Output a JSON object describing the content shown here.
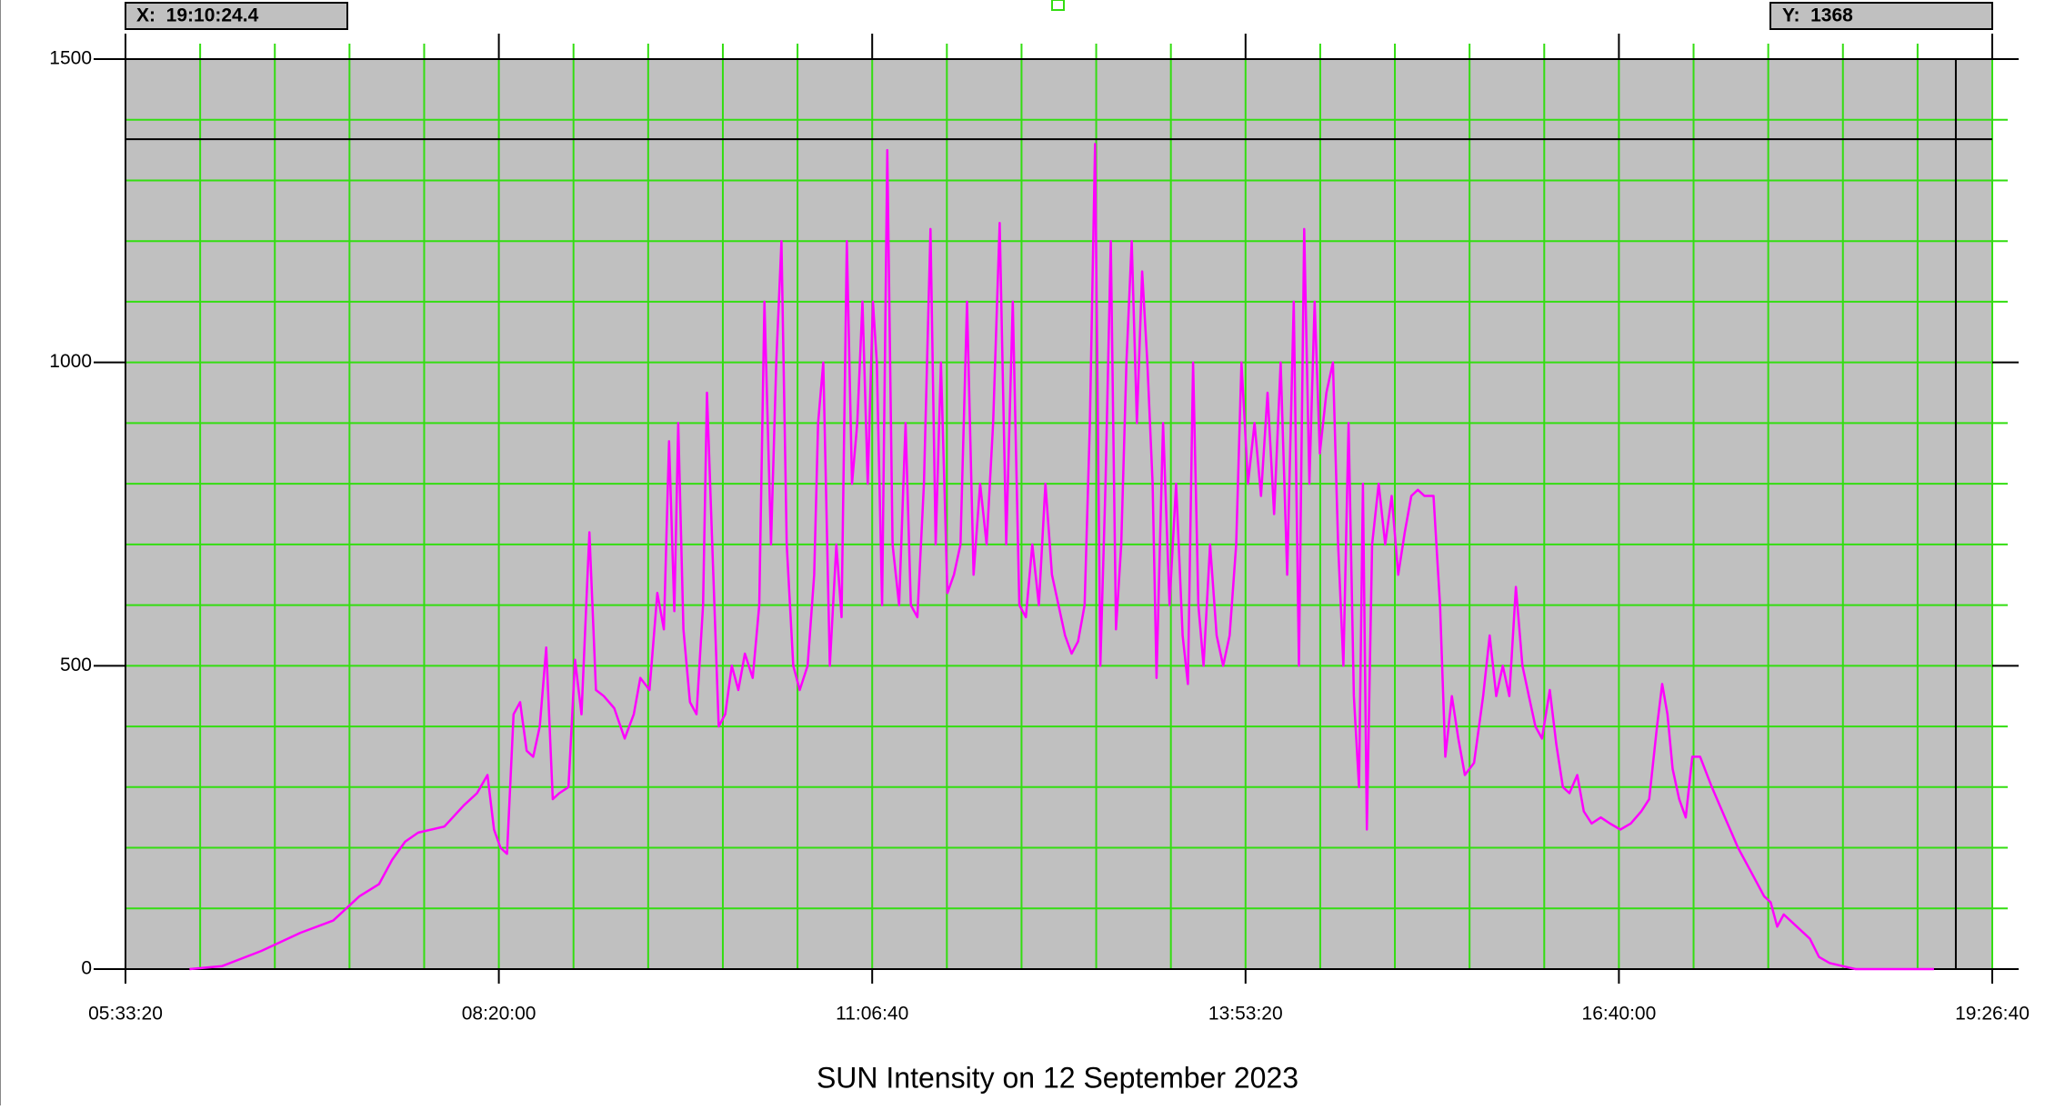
{
  "chart_data": {
    "type": "line",
    "title": "SUN Intensity on 12 September 2023",
    "x": [
      21715,
      22590,
      23640,
      24690,
      25565,
      26265,
      26790,
      27140,
      27490,
      27840,
      28540,
      29065,
      29415,
      29695,
      29870,
      30045,
      30220,
      30395,
      30570,
      30745,
      30920,
      31095,
      31270,
      31445,
      31620,
      31865,
      32040,
      32215,
      32425,
      32600,
      32810,
      33090,
      33370,
      33615,
      33790,
      34035,
      34245,
      34420,
      34560,
      34700,
      34805,
      34945,
      35120,
      35295,
      35470,
      35575,
      35715,
      35890,
      36065,
      36240,
      36415,
      36590,
      36800,
      36975,
      37115,
      37290,
      37430,
      37570,
      37710,
      37885,
      38060,
      38270,
      38445,
      38550,
      38690,
      38865,
      39040,
      39180,
      39320,
      39460,
      39600,
      39740,
      39880,
      40020,
      40125,
      40265,
      40405,
      40545,
      40720,
      40895,
      41035,
      41210,
      41385,
      41560,
      41700,
      41840,
      42015,
      42190,
      42365,
      42540,
      42715,
      42890,
      43065,
      43240,
      43415,
      43590,
      43765,
      43940,
      44115,
      44290,
      44465,
      44640,
      44815,
      44990,
      45165,
      45340,
      45515,
      45690,
      45830,
      45970,
      46110,
      46250,
      46390,
      46530,
      46670,
      46810,
      46950,
      47090,
      47230,
      47370,
      47510,
      47615,
      47790,
      47965,
      48140,
      48315,
      48455,
      48595,
      48735,
      48875,
      49050,
      49225,
      49400,
      49575,
      49750,
      49890,
      50065,
      50240,
      50415,
      50590,
      50765,
      50940,
      51115,
      51290,
      51430,
      51570,
      51710,
      51850,
      51990,
      52165,
      52340,
      52480,
      52620,
      52760,
      52900,
      53040,
      53145,
      53250,
      53390,
      53565,
      53740,
      53915,
      54090,
      54265,
      54440,
      54615,
      54790,
      55035,
      55210,
      55350,
      55525,
      55700,
      55875,
      56120,
      56365,
      56540,
      56715,
      56890,
      57065,
      57240,
      57415,
      57590,
      57765,
      57940,
      58150,
      58325,
      58500,
      58675,
      58885,
      59060,
      59270,
      59515,
      59760,
      60040,
      60320,
      60600,
      60810,
      61020,
      61160,
      61300,
      61440,
      61615,
      61790,
      61965,
      62175,
      62490,
      62840,
      63190,
      63540,
      63890,
      64065,
      64240,
      64415,
      64765,
      65115,
      65360,
      65640,
      65990,
      66340,
      68440
    ],
    "series": [
      {
        "color": "#ff00ff",
        "values": [
          0,
          5,
          30,
          60,
          80,
          120,
          140,
          180,
          210,
          225,
          235,
          270,
          290,
          320,
          230,
          200,
          190,
          420,
          440,
          360,
          350,
          400,
          530,
          280,
          290,
          300,
          510,
          420,
          720,
          460,
          450,
          430,
          380,
          420,
          480,
          460,
          620,
          560,
          870,
          590,
          900,
          560,
          440,
          420,
          600,
          950,
          700,
          400,
          420,
          500,
          460,
          520,
          480,
          600,
          1100,
          700,
          1000,
          1200,
          700,
          500,
          460,
          500,
          650,
          900,
          1000,
          500,
          700,
          580,
          1200,
          800,
          900,
          1100,
          800,
          1100,
          1000,
          600,
          1350,
          700,
          600,
          900,
          600,
          580,
          800,
          1220,
          700,
          1000,
          620,
          650,
          700,
          1100,
          650,
          800,
          700,
          900,
          1230,
          700,
          1100,
          600,
          580,
          700,
          600,
          800,
          650,
          600,
          550,
          520,
          540,
          600,
          900,
          1360,
          500,
          800,
          1200,
          560,
          700,
          1000,
          1200,
          900,
          1150,
          1000,
          800,
          480,
          900,
          600,
          800,
          550,
          470,
          1000,
          600,
          500,
          700,
          550,
          500,
          550,
          700,
          1000,
          800,
          900,
          780,
          950,
          750,
          1000,
          650,
          1100,
          500,
          1220,
          800,
          1100,
          850,
          950,
          1000,
          700,
          500,
          900,
          450,
          300,
          800,
          230,
          700,
          800,
          700,
          780,
          650,
          720,
          780,
          790,
          780,
          780,
          600,
          350,
          450,
          380,
          320,
          340,
          450,
          550,
          450,
          500,
          450,
          630,
          500,
          450,
          400,
          380,
          460,
          370,
          300,
          290,
          320,
          260,
          240,
          250,
          240,
          230,
          240,
          260,
          280,
          400,
          470,
          420,
          330,
          280,
          250,
          350,
          350,
          300,
          250,
          200,
          160,
          120,
          110,
          70,
          90,
          70,
          50,
          20,
          10,
          5,
          0,
          0
        ]
      }
    ],
    "xlim": [
      20000,
      70000
    ],
    "xticks": [
      {
        "value": 20000,
        "label": "05:33:20"
      },
      {
        "value": 30000,
        "label": "08:20:00"
      },
      {
        "value": 40000,
        "label": "11:06:40"
      },
      {
        "value": 50000,
        "label": "13:53:20"
      },
      {
        "value": 60000,
        "label": "16:40:00"
      },
      {
        "value": 70000,
        "label": "19:26:40"
      }
    ],
    "ylim": [
      0,
      1500
    ],
    "yticks": [
      0,
      500,
      1000,
      1500
    ],
    "grid": true,
    "grid_color": "#33dd11",
    "background": "#c0c0c0",
    "cursor": {
      "x": {
        "value": 69024.4,
        "label": "X:  19:10:24.4"
      },
      "y": {
        "value": 1368,
        "label": "Y:  1368"
      }
    }
  }
}
